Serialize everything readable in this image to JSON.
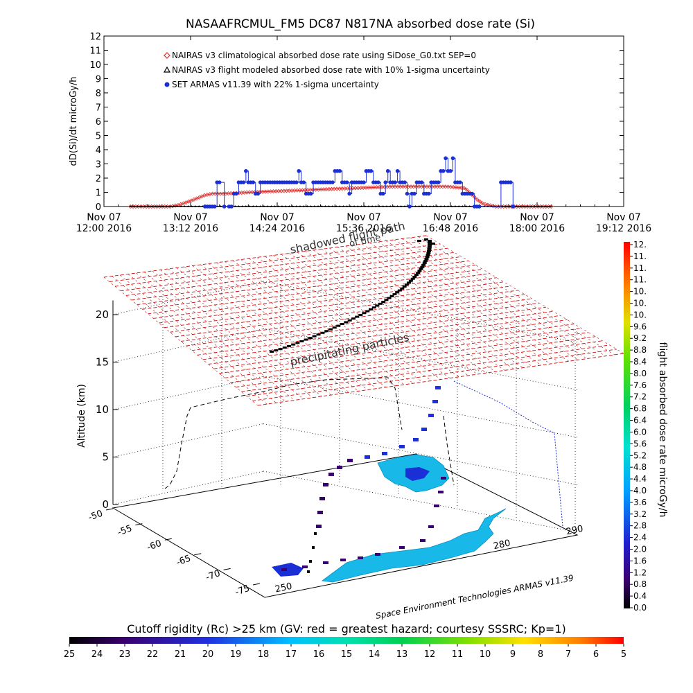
{
  "title": "NASAAFRCMUL_FM5 DC87 N817NA absorbed dose rate (Si)",
  "colors": {
    "nairas_clim": "#e03030",
    "nairas_flight": "#000000",
    "armas": "#1a2fd6",
    "plane_grid": "#cc1111",
    "cyan_region": "#18b8e8"
  },
  "chart_data": [
    {
      "type": "line",
      "title": "NASAAFRCMUL_FM5 DC87 N817NA absorbed dose rate (Si)",
      "ylabel": "dD(Si)/dt microGy/h",
      "xlabel": "",
      "ylim": [
        0,
        12
      ],
      "yticks": [
        "0",
        "1",
        "2",
        "3",
        "4",
        "5",
        "6",
        "7",
        "8",
        "9",
        "10",
        "11",
        "12"
      ],
      "xlim_minutes": [
        0,
        432
      ],
      "xticks": [
        {
          "t": 0,
          "l1": "Nov 07",
          "l2": "12:00 2016"
        },
        {
          "t": 72,
          "l1": "Nov 07",
          "l2": "13:12 2016"
        },
        {
          "t": 144,
          "l1": "Nov 07",
          "l2": "14:24 2016"
        },
        {
          "t": 216,
          "l1": "Nov 07",
          "l2": "15:36 2016"
        },
        {
          "t": 288,
          "l1": "Nov 07",
          "l2": "16:48 2016"
        },
        {
          "t": 360,
          "l1": "Nov 07",
          "l2": "18:00 2016"
        },
        {
          "t": 432,
          "l1": "Nov 07",
          "l2": "19:12 2016"
        }
      ],
      "legend": [
        {
          "label": "NAIRAS v3 climatological absorbed dose rate using SiDose_G0.txt SEP=0",
          "marker": "diamond",
          "color": "#e03030"
        },
        {
          "label": "NAIRAS v3 flight modeled absorbed dose rate with 10% 1-sigma uncertainty",
          "marker": "triangle",
          "color": "#000000"
        },
        {
          "label": "SET ARMAS v11.39 with 22% 1-sigma uncertainty",
          "marker": "circle",
          "color": "#1a2fd6"
        }
      ],
      "series": [
        {
          "name": "NAIRAS v3 climatological absorbed dose rate using SiDose_G0.txt SEP=0",
          "x": [
            22,
            55,
            62,
            72,
            84,
            90,
            100,
            120,
            150,
            180,
            210,
            240,
            270,
            285,
            300,
            305,
            310,
            315,
            325,
            350,
            372
          ],
          "y": [
            0,
            0,
            0.1,
            0.4,
            0.8,
            0.9,
            0.9,
            1.0,
            1.1,
            1.2,
            1.3,
            1.4,
            1.4,
            1.4,
            1.3,
            0.9,
            0.5,
            0.2,
            0,
            0,
            0
          ]
        },
        {
          "name": "NAIRAS v3 flight modeled absorbed dose rate with 10% 1-sigma uncertainty",
          "x": [
            22,
            80,
            120,
            160,
            200,
            240,
            280,
            320,
            372
          ],
          "y": [
            0,
            0,
            0,
            0,
            0,
            0,
            0,
            0,
            0
          ]
        },
        {
          "name": "SET ARMAS v11.39 with 22% 1-sigma uncertainty",
          "x": [
            84,
            86,
            88,
            90,
            92,
            94,
            96,
            100,
            104,
            106,
            108,
            110,
            112,
            114,
            116,
            118,
            120,
            122,
            124,
            126,
            128,
            130,
            132,
            134,
            136,
            138,
            140,
            142,
            144,
            146,
            148,
            150,
            152,
            154,
            156,
            158,
            160,
            162,
            164,
            166,
            168,
            170,
            172,
            174,
            176,
            178,
            180,
            182,
            184,
            186,
            188,
            190,
            192,
            194,
            196,
            198,
            200,
            202,
            204,
            206,
            208,
            210,
            212,
            214,
            216,
            218,
            220,
            222,
            224,
            226,
            228,
            230,
            232,
            234,
            236,
            238,
            240,
            242,
            244,
            246,
            248,
            250,
            252,
            254,
            256,
            258,
            260,
            262,
            264,
            266,
            268,
            270,
            272,
            274,
            276,
            278,
            280,
            282,
            284,
            286,
            288,
            290,
            292,
            294,
            296,
            298,
            300,
            302,
            304,
            306,
            308,
            310,
            312,
            330,
            332,
            334,
            336,
            338,
            340
          ],
          "y": [
            0,
            0,
            0,
            0,
            0,
            1.7,
            1.7,
            0,
            0,
            0,
            0.9,
            0.9,
            1.7,
            1.7,
            1.7,
            2.5,
            1.7,
            1.7,
            1.7,
            0.9,
            0.9,
            1.7,
            1.7,
            1.7,
            1.7,
            1.7,
            1.7,
            1.7,
            1.7,
            1.7,
            1.7,
            1.7,
            1.7,
            1.7,
            1.7,
            1.7,
            1.7,
            2.5,
            1.7,
            1.7,
            0.9,
            0.9,
            0.9,
            1.7,
            1.7,
            1.7,
            1.7,
            1.7,
            1.7,
            1.7,
            1.7,
            1.7,
            2.5,
            2.5,
            2.5,
            1.7,
            1.7,
            1.7,
            0.9,
            1.7,
            1.7,
            1.7,
            1.7,
            1.7,
            1.7,
            2.5,
            2.5,
            2.5,
            1.7,
            1.7,
            1.7,
            0.9,
            0.9,
            1.7,
            2.5,
            1.7,
            1.7,
            1.7,
            2.5,
            1.7,
            1.7,
            1.7,
            0.9,
            0,
            0.9,
            0.9,
            1.7,
            1.7,
            1.7,
            0.9,
            0.9,
            0.9,
            1.7,
            1.7,
            1.7,
            1.7,
            2.5,
            2.5,
            3.4,
            2.5,
            2.5,
            3.4,
            1.7,
            1.7,
            1.7,
            0.9,
            0.9,
            0.9,
            0.9,
            0.9,
            0,
            0,
            0,
            1.7,
            1.7,
            1.7,
            1.7,
            1.7,
            0
          ]
        }
      ]
    },
    {
      "type": "scatter",
      "title": "",
      "zlabel": "Altitude (km)",
      "zticks": [
        "0",
        "5",
        "10",
        "15",
        "20"
      ],
      "lat_ticks": [
        "-50",
        "-55",
        "-60",
        "-65",
        "-70",
        "-75"
      ],
      "lon_ticks": [
        "250",
        "260",
        "270",
        "280",
        "290"
      ],
      "annotations": [
        "shadowed flight path",
        "of time",
        "precipitating particles",
        "Space Environment Technologies ARMAS v11.39"
      ]
    }
  ],
  "colorbar_right": {
    "label": "flight absorbed dose rate microGy/h",
    "ticks": [
      "12.",
      "11.",
      "11.",
      "11.",
      "10.",
      "10.",
      "10.",
      "9.6",
      "9.2",
      "8.8",
      "8.4",
      "8.0",
      "7.6",
      "7.2",
      "6.8",
      "6.4",
      "6.0",
      "5.6",
      "5.2",
      "4.8",
      "4.4",
      "4.0",
      "3.6",
      "3.2",
      "2.8",
      "2.4",
      "2.0",
      "1.6",
      "1.2",
      "0.8",
      "0.4",
      "0.0"
    ]
  },
  "colorbar_bottom": {
    "label": "Cutoff rigidity (Rc) >25 km (GV: red = greatest hazard; courtesy SSSRC; Kp=1)",
    "ticks": [
      "25",
      "24",
      "23",
      "22",
      "21",
      "20",
      "19",
      "18",
      "17",
      "16",
      "15",
      "14",
      "13",
      "12",
      "11",
      "10",
      "9",
      "8",
      "7",
      "6",
      "5"
    ]
  }
}
